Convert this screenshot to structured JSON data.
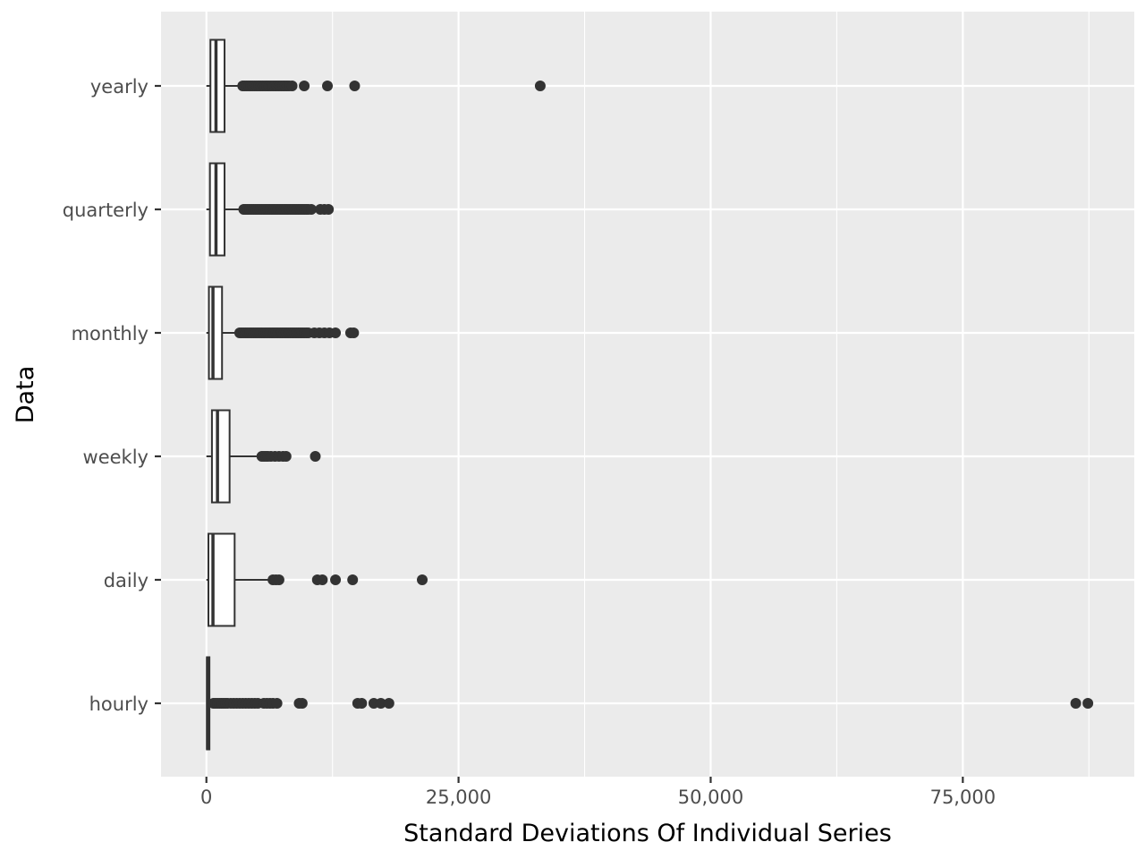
{
  "chart_data": {
    "type": "boxplot",
    "orientation": "horizontal",
    "xlabel": "Standard Deviations Of Individual Series",
    "ylabel": "Data",
    "xlim": [
      -4500,
      92000
    ],
    "x_ticks": [
      0,
      25000,
      50000,
      75000
    ],
    "x_tick_labels": [
      "0",
      "25,000",
      "50,000",
      "75,000"
    ],
    "x_minor_ticks": [
      12500,
      37500,
      62500,
      87500
    ],
    "grid": true,
    "colors": {
      "panel_background": "#ebebeb",
      "grid_line": "#ffffff",
      "box_stroke": "#333333",
      "point_fill": "#333333",
      "tick_label": "#4d4d4d"
    },
    "categories": [
      "yearly",
      "quarterly",
      "monthly",
      "weekly",
      "daily",
      "hourly"
    ],
    "boxes": [
      {
        "category": "yearly",
        "whisker_low": 0,
        "q1": 400,
        "median": 950,
        "q3": 1800,
        "whisker_high": 3500,
        "outliers": [
          3600,
          3800,
          4000,
          4200,
          4400,
          4600,
          4800,
          5000,
          5200,
          5400,
          5600,
          5800,
          6000,
          6200,
          6400,
          6600,
          6800,
          7000,
          7200,
          7400,
          7600,
          7800,
          8000,
          8200,
          8500,
          9700,
          12000,
          14700,
          33100
        ]
      },
      {
        "category": "quarterly",
        "whisker_low": 0,
        "q1": 350,
        "median": 950,
        "q3": 1800,
        "whisker_high": 3600,
        "outliers": [
          3700,
          3900,
          4100,
          4300,
          4500,
          4700,
          4900,
          5100,
          5300,
          5500,
          5700,
          5900,
          6100,
          6300,
          6500,
          6700,
          6900,
          7100,
          7300,
          7500,
          7700,
          7900,
          8100,
          8300,
          8500,
          8700,
          8900,
          9100,
          9300,
          9500,
          9700,
          9900,
          10100,
          10400,
          11300,
          11700,
          12100
        ]
      },
      {
        "category": "monthly",
        "whisker_low": 0,
        "q1": 250,
        "median": 650,
        "q3": 1550,
        "whisker_high": 3200,
        "outliers": [
          3300,
          3500,
          3700,
          3900,
          4100,
          4300,
          4500,
          4700,
          4900,
          5100,
          5300,
          5500,
          5700,
          5900,
          6100,
          6300,
          6500,
          6700,
          6900,
          7100,
          7300,
          7500,
          7700,
          7900,
          8100,
          8300,
          8500,
          8700,
          8900,
          9100,
          9300,
          9500,
          9700,
          9900,
          10100,
          10700,
          11200,
          11700,
          12200,
          12800,
          14300,
          14600
        ]
      },
      {
        "category": "weekly",
        "whisker_low": 0,
        "q1": 550,
        "median": 1100,
        "q3": 2300,
        "whisker_high": 5400,
        "outliers": [
          5500,
          5700,
          5900,
          6100,
          6400,
          6800,
          7200,
          7600,
          7900,
          10800
        ]
      },
      {
        "category": "daily",
        "whisker_low": 0,
        "q1": 200,
        "median": 650,
        "q3": 2800,
        "whisker_high": 6500,
        "outliers": [
          6600,
          6900,
          7200,
          11000,
          11500,
          12800,
          14500,
          21400
        ]
      },
      {
        "category": "hourly",
        "whisker_low": 0,
        "q1": 50,
        "median": 120,
        "q3": 300,
        "whisker_high": 650,
        "outliers": [
          700,
          900,
          1100,
          1300,
          1500,
          1700,
          1900,
          2100,
          2400,
          2700,
          3000,
          3300,
          3600,
          3900,
          4200,
          4500,
          4800,
          5100,
          5700,
          6000,
          6300,
          6600,
          7000,
          9200,
          9500,
          15000,
          15400,
          16600,
          17300,
          18100,
          86200,
          87400
        ]
      }
    ]
  }
}
